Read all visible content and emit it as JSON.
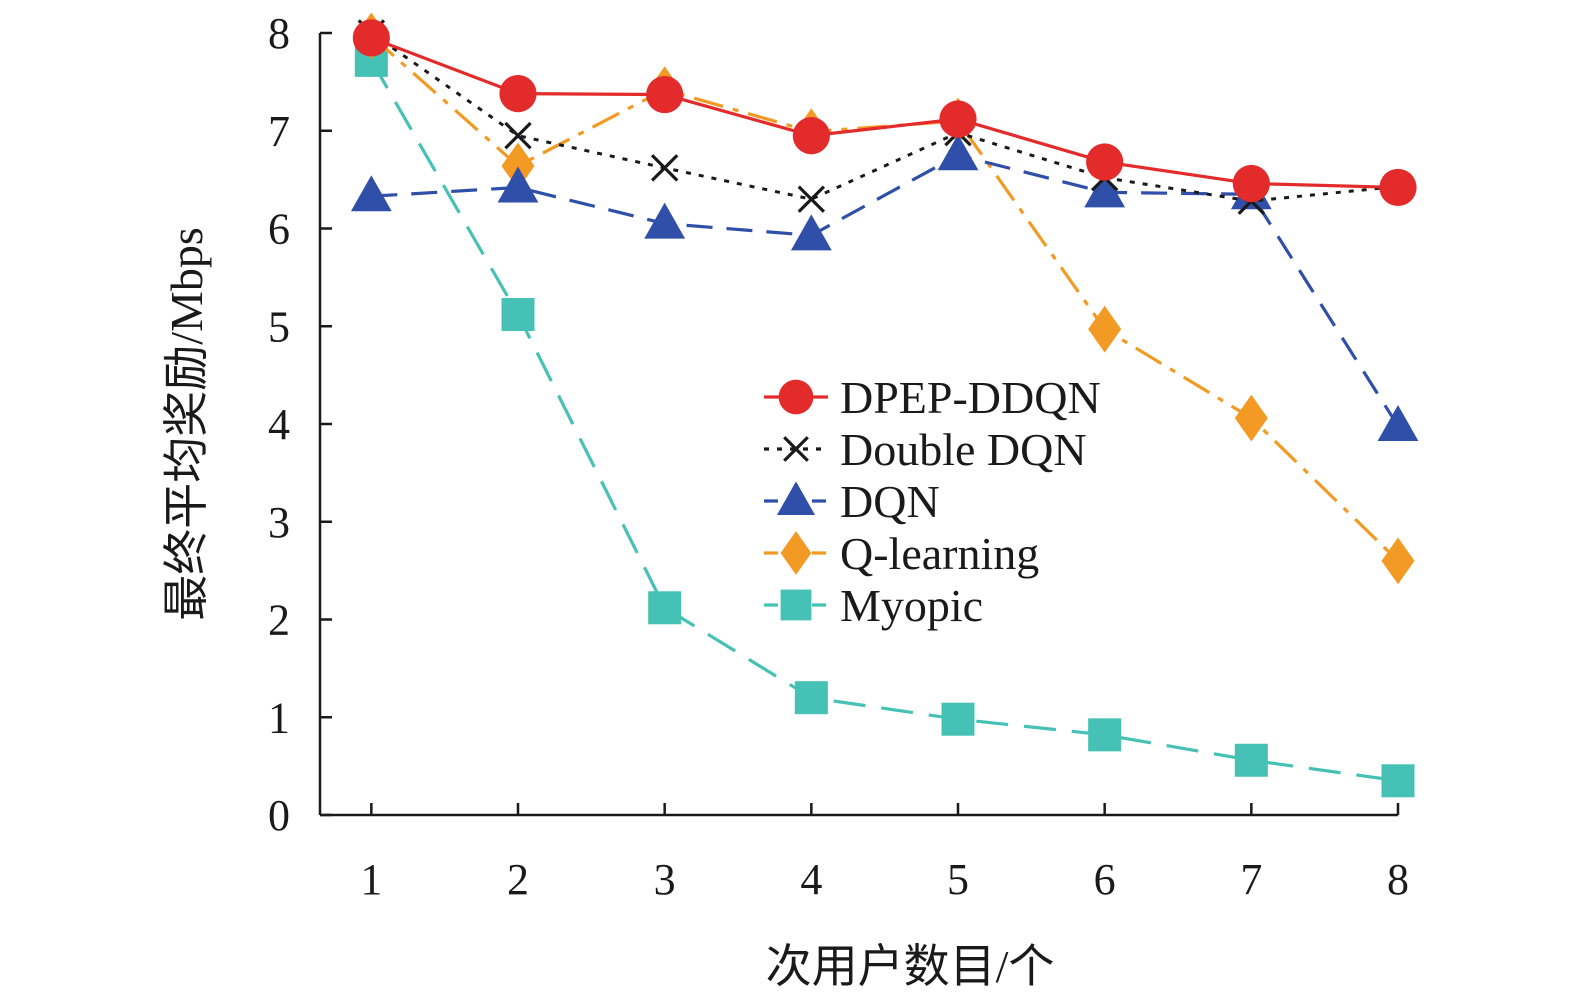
{
  "chart_data": {
    "type": "line",
    "title": "",
    "xlabel": "次用户数目/个",
    "ylabel": "最终平均奖励/Mbps",
    "x": [
      1,
      2,
      3,
      4,
      5,
      6,
      7,
      8
    ],
    "xlim": [
      0.65,
      8
    ],
    "ylim": [
      0,
      8
    ],
    "x_ticks": [
      "1",
      "2",
      "3",
      "4",
      "5",
      "6",
      "7",
      "8"
    ],
    "y_ticks": [
      "0",
      "1",
      "2",
      "3",
      "4",
      "5",
      "6",
      "7",
      "8"
    ],
    "grid": false,
    "legend_position": "center-right",
    "series": [
      {
        "name": "DPEP-DDQN",
        "values": [
          7.95,
          7.38,
          7.37,
          6.95,
          7.12,
          6.68,
          6.46,
          6.42
        ],
        "color": "#e32b2b",
        "marker": "circle",
        "line_style": "solid"
      },
      {
        "name": "Double DQN",
        "values": [
          8.0,
          6.95,
          6.62,
          6.3,
          6.98,
          6.52,
          6.28,
          6.43
        ],
        "color": "#1a1a1a",
        "marker": "x",
        "line_style": "dotted"
      },
      {
        "name": "DQN",
        "values": [
          6.33,
          6.42,
          6.05,
          5.93,
          6.75,
          6.37,
          6.35,
          3.98
        ],
        "color": "#2f4fa8",
        "marker": "triangle",
        "line_style": "dashed"
      },
      {
        "name": "Q-learning",
        "values": [
          7.97,
          6.64,
          7.42,
          6.99,
          7.1,
          4.97,
          4.06,
          2.6
        ],
        "color": "#f39a24",
        "marker": "diamond",
        "line_style": "dashdot"
      },
      {
        "name": "Myopic",
        "values": [
          7.72,
          5.12,
          2.12,
          1.2,
          0.98,
          0.82,
          0.56,
          0.35
        ],
        "color": "#45c1b5",
        "marker": "square",
        "line_style": "longdash"
      }
    ]
  }
}
